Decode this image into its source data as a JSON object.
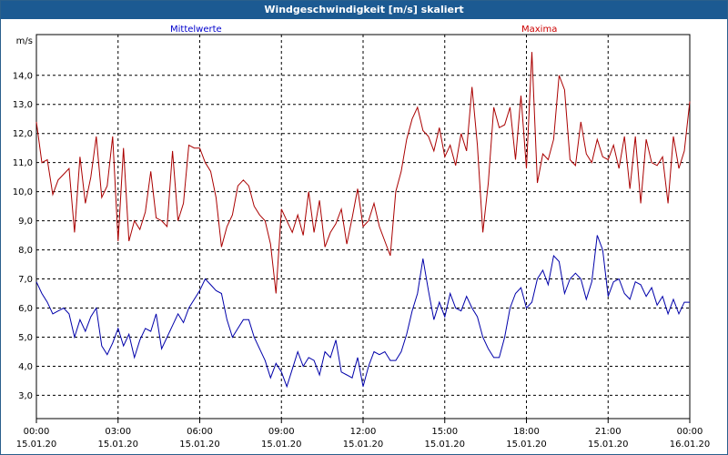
{
  "window": {
    "title": "Windgeschwindigkeit [m/s] skaliert"
  },
  "colors": {
    "titlebar": "#1c5a92",
    "mean": "#0000aa",
    "max": "#aa0000",
    "grid": "#000000"
  },
  "chart_data": {
    "type": "line",
    "title": "Windgeschwindigkeit [m/s] skaliert",
    "ylabel": "m/s",
    "xlabel": "",
    "grid": true,
    "xlim": [
      0,
      24
    ],
    "ylim": [
      2.2,
      15.4
    ],
    "y_ticks": [
      "3,0",
      "4,0",
      "5,0",
      "6,0",
      "7,0",
      "8,0",
      "9,0",
      "10,0",
      "11,0",
      "12,0",
      "13,0",
      "14,0"
    ],
    "x_ticks": [
      {
        "time": "00:00",
        "date": "15.01.20"
      },
      {
        "time": "03:00",
        "date": "15.01.20"
      },
      {
        "time": "06:00",
        "date": "15.01.20"
      },
      {
        "time": "09:00",
        "date": "15.01.20"
      },
      {
        "time": "12:00",
        "date": "15.01.20"
      },
      {
        "time": "15:00",
        "date": "15.01.20"
      },
      {
        "time": "18:00",
        "date": "15.01.20"
      },
      {
        "time": "21:00",
        "date": "15.01.20"
      },
      {
        "time": "00:00",
        "date": "16.01.20"
      }
    ],
    "series": [
      {
        "name": "Mittelwerte",
        "x": [
          0,
          0.2,
          0.4,
          0.6,
          0.8,
          1.0,
          1.2,
          1.4,
          1.6,
          1.8,
          2.0,
          2.2,
          2.4,
          2.6,
          2.8,
          3.0,
          3.2,
          3.4,
          3.6,
          3.8,
          4.0,
          4.2,
          4.4,
          4.6,
          4.8,
          5.0,
          5.2,
          5.4,
          5.6,
          5.8,
          6.0,
          6.2,
          6.4,
          6.6,
          6.8,
          7.0,
          7.2,
          7.4,
          7.6,
          7.8,
          8.0,
          8.2,
          8.4,
          8.6,
          8.8,
          9.0,
          9.2,
          9.4,
          9.6,
          9.8,
          10.0,
          10.2,
          10.4,
          10.6,
          10.8,
          11.0,
          11.2,
          11.4,
          11.6,
          11.8,
          12.0,
          12.2,
          12.4,
          12.6,
          12.8,
          13.0,
          13.2,
          13.4,
          13.6,
          13.8,
          14.0,
          14.2,
          14.4,
          14.6,
          14.8,
          15.0,
          15.2,
          15.4,
          15.6,
          15.8,
          16.0,
          16.2,
          16.4,
          16.6,
          16.8,
          17.0,
          17.2,
          17.4,
          17.6,
          17.8,
          18.0,
          18.2,
          18.4,
          18.6,
          18.8,
          19.0,
          19.2,
          19.4,
          19.6,
          19.8,
          20.0,
          20.2,
          20.4,
          20.6,
          20.8,
          21.0,
          21.2,
          21.4,
          21.6,
          21.8,
          22.0,
          22.2,
          22.4,
          22.6,
          22.8,
          23.0,
          23.2,
          23.4,
          23.6,
          23.8,
          24.0
        ],
        "values": [
          6.9,
          6.5,
          6.2,
          5.8,
          5.9,
          6.0,
          5.8,
          5.0,
          5.6,
          5.2,
          5.7,
          6.0,
          4.7,
          4.4,
          4.8,
          5.3,
          4.7,
          5.1,
          4.3,
          4.9,
          5.3,
          5.2,
          5.8,
          4.6,
          5.0,
          5.4,
          5.8,
          5.5,
          6.0,
          6.3,
          6.6,
          7.0,
          6.8,
          6.6,
          6.5,
          5.6,
          5.0,
          5.3,
          5.6,
          5.6,
          5.0,
          4.6,
          4.2,
          3.6,
          4.1,
          3.8,
          3.3,
          3.9,
          4.5,
          4.0,
          4.3,
          4.2,
          3.7,
          4.5,
          4.3,
          4.9,
          3.8,
          3.7,
          3.6,
          4.3,
          3.3,
          4.0,
          4.5,
          4.4,
          4.5,
          4.2,
          4.2,
          4.5,
          5.1,
          5.9,
          6.5,
          7.7,
          6.6,
          5.6,
          6.2,
          5.7,
          6.5,
          6.0,
          5.9,
          6.4,
          6.0,
          5.7,
          5.0,
          4.6,
          4.3,
          4.3,
          5.0,
          6.0,
          6.5,
          6.7,
          6.0,
          6.2,
          7.0,
          7.3,
          6.8,
          7.8,
          7.6,
          6.5,
          7.0,
          7.2,
          7.0,
          6.3,
          6.9,
          8.5,
          8.0,
          6.4,
          6.9,
          7.0,
          6.5,
          6.3,
          6.9,
          6.8,
          6.4,
          6.7,
          6.1,
          6.4,
          5.8,
          6.3,
          5.8,
          6.2,
          6.2
        ],
        "color": "#0000aa"
      },
      {
        "name": "Maxima",
        "x": [
          0,
          0.2,
          0.4,
          0.6,
          0.8,
          1.0,
          1.2,
          1.4,
          1.6,
          1.8,
          2.0,
          2.2,
          2.4,
          2.6,
          2.8,
          3.0,
          3.2,
          3.4,
          3.6,
          3.8,
          4.0,
          4.2,
          4.4,
          4.6,
          4.8,
          5.0,
          5.2,
          5.4,
          5.6,
          5.8,
          6.0,
          6.2,
          6.4,
          6.6,
          6.8,
          7.0,
          7.2,
          7.4,
          7.6,
          7.8,
          8.0,
          8.2,
          8.4,
          8.6,
          8.8,
          9.0,
          9.2,
          9.4,
          9.6,
          9.8,
          10.0,
          10.2,
          10.4,
          10.6,
          10.8,
          11.0,
          11.2,
          11.4,
          11.6,
          11.8,
          12.0,
          12.2,
          12.4,
          12.6,
          12.8,
          13.0,
          13.2,
          13.4,
          13.6,
          13.8,
          14.0,
          14.2,
          14.4,
          14.6,
          14.8,
          15.0,
          15.2,
          15.4,
          15.6,
          15.8,
          16.0,
          16.2,
          16.4,
          16.6,
          16.8,
          17.0,
          17.2,
          17.4,
          17.6,
          17.8,
          18.0,
          18.2,
          18.4,
          18.6,
          18.8,
          19.0,
          19.2,
          19.4,
          19.6,
          19.8,
          20.0,
          20.2,
          20.4,
          20.6,
          20.8,
          21.0,
          21.2,
          21.4,
          21.6,
          21.8,
          22.0,
          22.2,
          22.4,
          22.6,
          22.8,
          23.0,
          23.2,
          23.4,
          23.6,
          23.8,
          24.0
        ],
        "values": [
          12.4,
          11.0,
          11.1,
          9.9,
          10.4,
          10.6,
          10.8,
          8.6,
          11.2,
          9.6,
          10.5,
          11.9,
          9.8,
          10.2,
          11.9,
          8.3,
          11.5,
          8.3,
          9.0,
          8.7,
          9.3,
          10.7,
          9.1,
          9.0,
          8.8,
          11.4,
          9.0,
          9.6,
          11.6,
          11.5,
          11.5,
          11.0,
          10.7,
          9.8,
          8.1,
          8.8,
          9.2,
          10.2,
          10.4,
          10.2,
          9.5,
          9.2,
          9.0,
          8.2,
          6.5,
          9.4,
          9.0,
          8.6,
          9.2,
          8.5,
          10.0,
          8.6,
          9.7,
          8.1,
          8.6,
          8.9,
          9.4,
          8.2,
          9.1,
          10.1,
          8.8,
          9.0,
          9.6,
          8.8,
          8.3,
          7.8,
          10.0,
          10.7,
          11.8,
          12.5,
          12.9,
          12.1,
          11.9,
          11.4,
          12.2,
          11.2,
          11.6,
          10.9,
          12.0,
          11.4,
          13.6,
          11.6,
          8.6,
          10.3,
          12.9,
          12.2,
          12.3,
          12.9,
          11.1,
          13.3,
          10.8,
          14.8,
          10.3,
          11.3,
          11.1,
          11.8,
          14.0,
          13.5,
          11.1,
          10.9,
          12.4,
          11.3,
          11.0,
          11.8,
          11.2,
          11.1,
          11.6,
          10.8,
          11.9,
          10.1,
          11.9,
          9.6,
          11.8,
          11.0,
          10.9,
          11.2,
          9.6,
          11.9,
          10.8,
          11.4,
          13.1
        ],
        "color": "#aa0000"
      }
    ]
  }
}
